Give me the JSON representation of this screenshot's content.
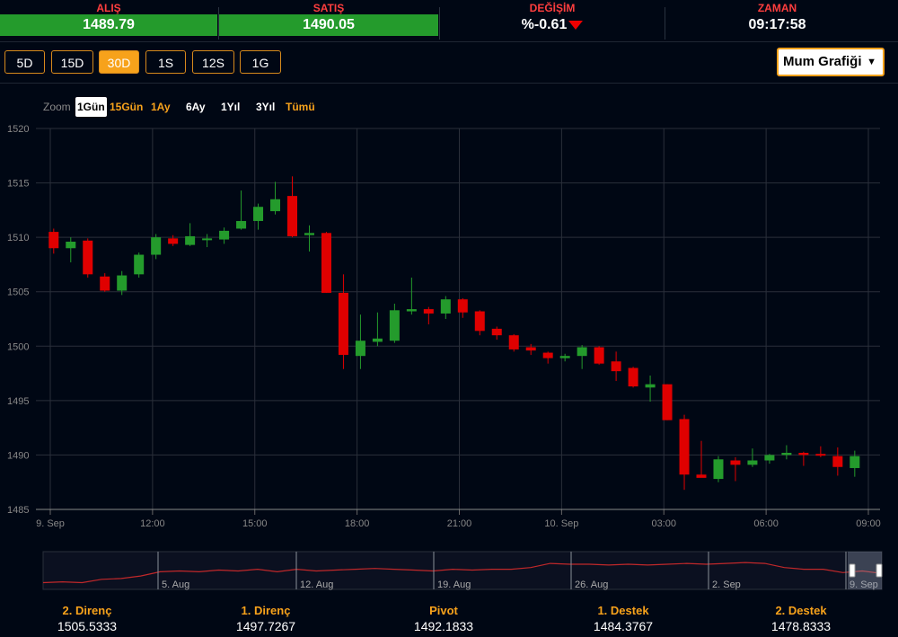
{
  "quote": {
    "bid_label": "ALIŞ",
    "bid_value": "1489.79",
    "ask_label": "SATIŞ",
    "ask_value": "1490.05",
    "change_label": "DEĞİŞİM",
    "change_value": "%-0.61",
    "time_label": "ZAMAN",
    "time_value": "09:17:58",
    "colors": {
      "up": "#249b2c",
      "down": "#e00000",
      "accent": "#f7a21b"
    }
  },
  "periods": [
    {
      "label": "5D",
      "active": false
    },
    {
      "label": "15D",
      "active": false
    },
    {
      "label": "30D",
      "active": true
    },
    {
      "label": "1S",
      "active": false
    },
    {
      "label": "12S",
      "active": false
    },
    {
      "label": "1G",
      "active": false
    }
  ],
  "chart_type_select": {
    "value": "Mum Grafiği"
  },
  "zoom": {
    "label": "Zoom",
    "options": [
      "1Gün",
      "15Gün",
      "1Ay",
      "6Ay",
      "1Yıl",
      "3Yıl",
      "Tümü"
    ],
    "selected": "1Gün"
  },
  "chart_data": {
    "type": "candlestick",
    "ylim": [
      1485,
      1520
    ],
    "yticks": [
      "1520",
      "1515",
      "1510",
      "1505",
      "1500",
      "1495",
      "1490",
      "1485"
    ],
    "xticks": [
      {
        "label": "9. Sep",
        "t": 0
      },
      {
        "label": "12:00",
        "t": 3
      },
      {
        "label": "15:00",
        "t": 6
      },
      {
        "label": "18:00",
        "t": 9
      },
      {
        "label": "21:00",
        "t": 12
      },
      {
        "label": "10. Sep",
        "t": 15
      },
      {
        "label": "03:00",
        "t": 18
      },
      {
        "label": "06:00",
        "t": 21
      },
      {
        "label": "09:00",
        "t": 24
      }
    ],
    "candles": [
      {
        "t": 0.1,
        "o": 1510.5,
        "h": 1510.8,
        "l": 1508.5,
        "c": 1509.0
      },
      {
        "t": 0.6,
        "o": 1509.0,
        "h": 1510.0,
        "l": 1507.7,
        "c": 1509.6
      },
      {
        "t": 1.1,
        "o": 1509.7,
        "h": 1509.9,
        "l": 1506.3,
        "c": 1506.6
      },
      {
        "t": 1.6,
        "o": 1506.4,
        "h": 1506.7,
        "l": 1505.0,
        "c": 1505.1
      },
      {
        "t": 2.1,
        "o": 1505.1,
        "h": 1506.9,
        "l": 1504.7,
        "c": 1506.5
      },
      {
        "t": 2.6,
        "o": 1506.6,
        "h": 1508.6,
        "l": 1506.3,
        "c": 1508.4
      },
      {
        "t": 3.1,
        "o": 1508.4,
        "h": 1510.3,
        "l": 1508.0,
        "c": 1510.0
      },
      {
        "t": 3.6,
        "o": 1509.9,
        "h": 1510.2,
        "l": 1509.2,
        "c": 1509.4
      },
      {
        "t": 4.1,
        "o": 1509.3,
        "h": 1511.3,
        "l": 1509.2,
        "c": 1510.1
      },
      {
        "t": 4.6,
        "o": 1509.8,
        "h": 1510.3,
        "l": 1509.1,
        "c": 1509.9
      },
      {
        "t": 5.1,
        "o": 1509.8,
        "h": 1510.9,
        "l": 1509.4,
        "c": 1510.6
      },
      {
        "t": 5.6,
        "o": 1510.8,
        "h": 1514.3,
        "l": 1510.7,
        "c": 1511.5
      },
      {
        "t": 6.1,
        "o": 1511.5,
        "h": 1513.1,
        "l": 1510.7,
        "c": 1512.8
      },
      {
        "t": 6.6,
        "o": 1512.4,
        "h": 1515.1,
        "l": 1512.1,
        "c": 1513.5
      },
      {
        "t": 7.1,
        "o": 1513.8,
        "h": 1515.6,
        "l": 1510.0,
        "c": 1510.1
      },
      {
        "t": 7.6,
        "o": 1510.2,
        "h": 1511.1,
        "l": 1508.7,
        "c": 1510.4
      },
      {
        "t": 8.1,
        "o": 1510.4,
        "h": 1510.5,
        "l": 1504.9,
        "c": 1504.9
      },
      {
        "t": 8.6,
        "o": 1504.9,
        "h": 1506.6,
        "l": 1497.9,
        "c": 1499.2
      },
      {
        "t": 9.1,
        "o": 1499.1,
        "h": 1502.9,
        "l": 1497.9,
        "c": 1500.5
      },
      {
        "t": 9.6,
        "o": 1500.4,
        "h": 1503.1,
        "l": 1500.0,
        "c": 1500.7
      },
      {
        "t": 10.1,
        "o": 1500.5,
        "h": 1503.9,
        "l": 1500.3,
        "c": 1503.3
      },
      {
        "t": 10.6,
        "o": 1503.2,
        "h": 1506.3,
        "l": 1502.9,
        "c": 1503.4
      },
      {
        "t": 11.1,
        "o": 1503.4,
        "h": 1503.6,
        "l": 1502.0,
        "c": 1503.0
      },
      {
        "t": 11.6,
        "o": 1503.0,
        "h": 1504.6,
        "l": 1502.5,
        "c": 1504.3
      },
      {
        "t": 12.1,
        "o": 1504.3,
        "h": 1504.4,
        "l": 1502.6,
        "c": 1503.1
      },
      {
        "t": 12.6,
        "o": 1503.2,
        "h": 1503.3,
        "l": 1501.0,
        "c": 1501.4
      },
      {
        "t": 13.1,
        "o": 1501.6,
        "h": 1501.8,
        "l": 1500.6,
        "c": 1501.0
      },
      {
        "t": 13.6,
        "o": 1501.0,
        "h": 1501.1,
        "l": 1499.5,
        "c": 1499.7
      },
      {
        "t": 14.1,
        "o": 1499.9,
        "h": 1500.2,
        "l": 1499.2,
        "c": 1499.6
      },
      {
        "t": 14.6,
        "o": 1499.4,
        "h": 1499.5,
        "l": 1498.4,
        "c": 1498.9
      },
      {
        "t": 15.1,
        "o": 1498.9,
        "h": 1499.3,
        "l": 1498.6,
        "c": 1499.1
      },
      {
        "t": 15.6,
        "o": 1499.1,
        "h": 1500.1,
        "l": 1497.9,
        "c": 1499.9
      },
      {
        "t": 16.1,
        "o": 1499.9,
        "h": 1500.0,
        "l": 1498.3,
        "c": 1498.4
      },
      {
        "t": 16.6,
        "o": 1498.6,
        "h": 1499.5,
        "l": 1496.8,
        "c": 1497.7
      },
      {
        "t": 17.1,
        "o": 1498.0,
        "h": 1498.1,
        "l": 1496.2,
        "c": 1496.3
      },
      {
        "t": 17.6,
        "o": 1496.2,
        "h": 1497.3,
        "l": 1494.9,
        "c": 1496.5
      },
      {
        "t": 18.1,
        "o": 1496.5,
        "h": 1496.5,
        "l": 1493.2,
        "c": 1493.2
      },
      {
        "t": 18.6,
        "o": 1493.3,
        "h": 1493.7,
        "l": 1486.8,
        "c": 1488.2
      },
      {
        "t": 19.1,
        "o": 1488.2,
        "h": 1491.3,
        "l": 1488.0,
        "c": 1487.9
      },
      {
        "t": 19.6,
        "o": 1487.8,
        "h": 1489.9,
        "l": 1487.5,
        "c": 1489.6
      },
      {
        "t": 20.1,
        "o": 1489.5,
        "h": 1489.8,
        "l": 1487.6,
        "c": 1489.1
      },
      {
        "t": 20.6,
        "o": 1489.1,
        "h": 1490.6,
        "l": 1488.9,
        "c": 1489.5
      },
      {
        "t": 21.1,
        "o": 1489.5,
        "h": 1490.1,
        "l": 1489.2,
        "c": 1490.0
      },
      {
        "t": 21.6,
        "o": 1490.0,
        "h": 1490.9,
        "l": 1489.6,
        "c": 1490.2
      },
      {
        "t": 22.1,
        "o": 1490.2,
        "h": 1490.3,
        "l": 1489.0,
        "c": 1490.0
      },
      {
        "t": 22.6,
        "o": 1490.1,
        "h": 1490.8,
        "l": 1489.8,
        "c": 1490.0
      },
      {
        "t": 23.1,
        "o": 1489.9,
        "h": 1490.7,
        "l": 1488.1,
        "c": 1488.9
      },
      {
        "t": 23.6,
        "o": 1488.8,
        "h": 1490.4,
        "l": 1488.0,
        "c": 1489.9
      }
    ]
  },
  "navigator": {
    "labels": [
      "5. Aug",
      "12. Aug",
      "19. Aug",
      "26. Aug",
      "2. Sep",
      "9. Sep"
    ],
    "series": [
      1478,
      1479,
      1478,
      1482,
      1483,
      1486,
      1491,
      1492,
      1491,
      1493,
      1492,
      1494,
      1491,
      1494,
      1492,
      1493,
      1494,
      1495,
      1494,
      1493,
      1492,
      1494,
      1493,
      1494,
      1494,
      1496,
      1501,
      1500,
      1500,
      1499,
      1500,
      1499,
      1500,
      1501,
      1500,
      1501,
      1502,
      1501,
      1496,
      1494,
      1494,
      1490,
      1492,
      1489
    ]
  },
  "pivots": [
    {
      "label": "2. Direnç",
      "value": "1505.5333"
    },
    {
      "label": "1. Direnç",
      "value": "1497.7267"
    },
    {
      "label": "Pivot",
      "value": "1492.1833"
    },
    {
      "label": "1. Destek",
      "value": "1484.3767"
    },
    {
      "label": "2. Destek",
      "value": "1478.8333"
    }
  ]
}
